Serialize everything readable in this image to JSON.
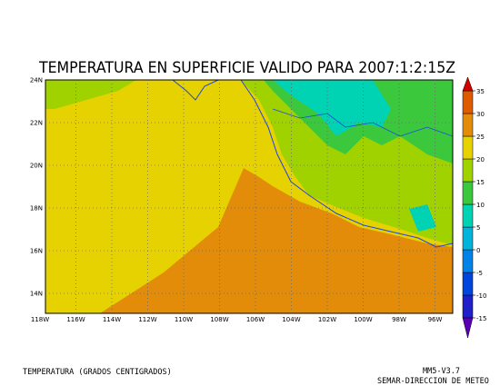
{
  "map": {
    "title": "TEMPERATURA EN SUPERFICIE VALIDO PARA 2007:1:2:15Z",
    "lat_labels": [
      "24N",
      "22N",
      "20N",
      "18N",
      "16N",
      "14N"
    ],
    "lon_labels": [
      "118W",
      "116W",
      "114W",
      "112W",
      "110W",
      "108W",
      "106W",
      "104W",
      "102W",
      "100W",
      "98W",
      "96W"
    ],
    "colorbar": {
      "levels": [
        -15,
        -10,
        -5,
        0,
        5,
        10,
        15,
        20,
        25,
        30,
        35
      ],
      "colors": [
        "#5a00b4",
        "#2020c8",
        "#0046dc",
        "#0082e6",
        "#00b4dc",
        "#00d2b4",
        "#3cc83c",
        "#a0d200",
        "#e6d200",
        "#e38c0a",
        "#e05a00",
        "#d20000"
      ]
    },
    "footer_left": "TEMPERATURA (GRADOS CENTIGRADOS)",
    "footer_right_1": "MM5-V3.7",
    "footer_right_2": "SEMAR-DIRECCION DE METEO"
  }
}
